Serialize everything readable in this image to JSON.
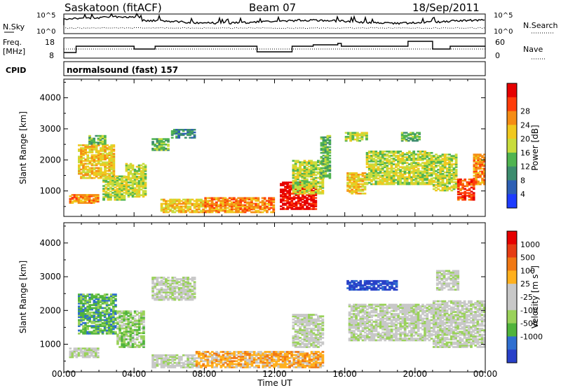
{
  "header": {
    "station": "Saskatoon (fitACF)",
    "beam": "Beam 07",
    "date": "18/Sep/2011"
  },
  "noise_panel": {
    "left_label": "N.Sky",
    "right_label": "N.Search",
    "left_ticks": [
      "10^5",
      "10^0"
    ],
    "right_ticks": [
      "10^5",
      "10^0"
    ]
  },
  "freq_panel": {
    "left_label_1": "Freq.",
    "left_label_2": "[MHz]",
    "right_label": "Nave",
    "left_ticks": [
      "18",
      "8"
    ],
    "right_ticks": [
      "60",
      "0"
    ]
  },
  "cpid": {
    "label": "CPID",
    "program": "normalsound (fast) 157"
  },
  "colors": {
    "power_scale": [
      "#1e3cff",
      "#2d5fb4",
      "#3c8c6e",
      "#50b450",
      "#c8dc3c",
      "#f0c81e",
      "#f58c14",
      "#ff3c0a",
      "#e60000"
    ],
    "velocity_scale": [
      "#2840c8",
      "#2f6fd0",
      "#50b43c",
      "#9ad25a",
      "#c8c8c8",
      "#c8c8c8",
      "#ffb01e",
      "#f07814",
      "#e63c14",
      "#e60000"
    ],
    "ground_scatter": "#c8c8c8"
  },
  "chart_data": [
    {
      "type": "heatmap",
      "title": "Saskatoon (fitACF) Beam 07 18/Sep/2011",
      "xlabel": "Time UT",
      "ylabel": "Slant Range [km]",
      "xlim": [
        "00:00",
        "24:00"
      ],
      "ylim": [
        180,
        4600
      ],
      "x_ticks": [
        "00:00",
        "04:00",
        "08:00",
        "12:00",
        "16:00",
        "20:00",
        "00:00"
      ],
      "y_ticks": [
        "1000",
        "2000",
        "3000",
        "4000"
      ],
      "colorbar": {
        "label": "Power [dB]",
        "ticks": [
          "4",
          "8",
          "12",
          "16",
          "20",
          "24",
          "28"
        ]
      },
      "regions": [
        {
          "t0": 0.3,
          "t1": 2.0,
          "r0": 600,
          "r1": 900,
          "level": 6
        },
        {
          "t0": 0.8,
          "t1": 2.9,
          "r0": 1400,
          "r1": 2500,
          "level": 5
        },
        {
          "t0": 1.4,
          "t1": 2.4,
          "r0": 2500,
          "r1": 2800,
          "level": 3
        },
        {
          "t0": 2.2,
          "t1": 3.5,
          "r0": 700,
          "r1": 1500,
          "level": 4
        },
        {
          "t0": 3.5,
          "t1": 4.7,
          "r0": 800,
          "r1": 1900,
          "level": 4
        },
        {
          "t0": 5.0,
          "t1": 6.0,
          "r0": 2300,
          "r1": 2700,
          "level": 3
        },
        {
          "t0": 6.1,
          "t1": 7.5,
          "r0": 2700,
          "r1": 3000,
          "level": 2
        },
        {
          "t0": 5.5,
          "t1": 8.0,
          "r0": 300,
          "r1": 750,
          "level": 5
        },
        {
          "t0": 8.0,
          "t1": 12.0,
          "r0": 300,
          "r1": 800,
          "level": 6
        },
        {
          "t0": 12.3,
          "t1": 14.4,
          "r0": 400,
          "r1": 1300,
          "level": 8
        },
        {
          "t0": 13.0,
          "t1": 14.8,
          "r0": 900,
          "r1": 2000,
          "level": 4
        },
        {
          "t0": 14.6,
          "t1": 15.2,
          "r0": 1400,
          "r1": 2800,
          "level": 3
        },
        {
          "t0": 16.1,
          "t1": 17.2,
          "r0": 900,
          "r1": 1600,
          "level": 5
        },
        {
          "t0": 16.0,
          "t1": 17.3,
          "r0": 2600,
          "r1": 2900,
          "level": 4
        },
        {
          "t0": 17.2,
          "t1": 21.0,
          "r0": 1200,
          "r1": 2300,
          "level": 4
        },
        {
          "t0": 19.2,
          "t1": 20.3,
          "r0": 2600,
          "r1": 2900,
          "level": 3
        },
        {
          "t0": 21.0,
          "t1": 22.4,
          "r0": 1000,
          "r1": 2200,
          "level": 4
        },
        {
          "t0": 22.4,
          "t1": 23.4,
          "r0": 700,
          "r1": 1400,
          "level": 7
        },
        {
          "t0": 23.3,
          "t1": 24.0,
          "r0": 1200,
          "r1": 2200,
          "level": 6
        }
      ]
    },
    {
      "type": "heatmap",
      "xlabel": "Time UT",
      "ylabel": "Slant Range [km]",
      "xlim": [
        "00:00",
        "24:00"
      ],
      "ylim": [
        180,
        4600
      ],
      "x_ticks": [
        "00:00",
        "04:00",
        "08:00",
        "12:00",
        "16:00",
        "20:00",
        "00:00"
      ],
      "y_ticks": [
        "1000",
        "2000",
        "3000",
        "4000"
      ],
      "colorbar": {
        "label": "Velocity [m s^-1]",
        "ticks": [
          "1000",
          "500",
          "100",
          "25",
          "-25",
          "-100",
          "-500",
          "-1000"
        ]
      },
      "regions": [
        {
          "t0": 0.3,
          "t1": 2.0,
          "r0": 600,
          "r1": 900,
          "level": 4
        },
        {
          "t0": 0.8,
          "t1": 3.0,
          "r0": 1300,
          "r1": 2500,
          "level": 2
        },
        {
          "t0": 3.0,
          "t1": 4.6,
          "r0": 900,
          "r1": 2000,
          "level": 3
        },
        {
          "t0": 5.0,
          "t1": 7.5,
          "r0": 2300,
          "r1": 3000,
          "level": 4
        },
        {
          "t0": 5.0,
          "t1": 7.5,
          "r0": 300,
          "r1": 700,
          "level": 4
        },
        {
          "t0": 7.5,
          "t1": 14.8,
          "r0": 300,
          "r1": 800,
          "level": 6
        },
        {
          "t0": 13.0,
          "t1": 14.8,
          "r0": 900,
          "r1": 1900,
          "level": 4
        },
        {
          "t0": 16.1,
          "t1": 17.2,
          "r0": 2600,
          "r1": 2900,
          "level": 0
        },
        {
          "t0": 17.2,
          "t1": 19.0,
          "r0": 2600,
          "r1": 2900,
          "level": 0
        },
        {
          "t0": 16.2,
          "t1": 21.0,
          "r0": 1100,
          "r1": 2200,
          "level": 4
        },
        {
          "t0": 21.0,
          "t1": 24.0,
          "r0": 900,
          "r1": 2300,
          "level": 4
        },
        {
          "t0": 21.2,
          "t1": 22.5,
          "r0": 2600,
          "r1": 3200,
          "level": 4
        }
      ]
    }
  ]
}
